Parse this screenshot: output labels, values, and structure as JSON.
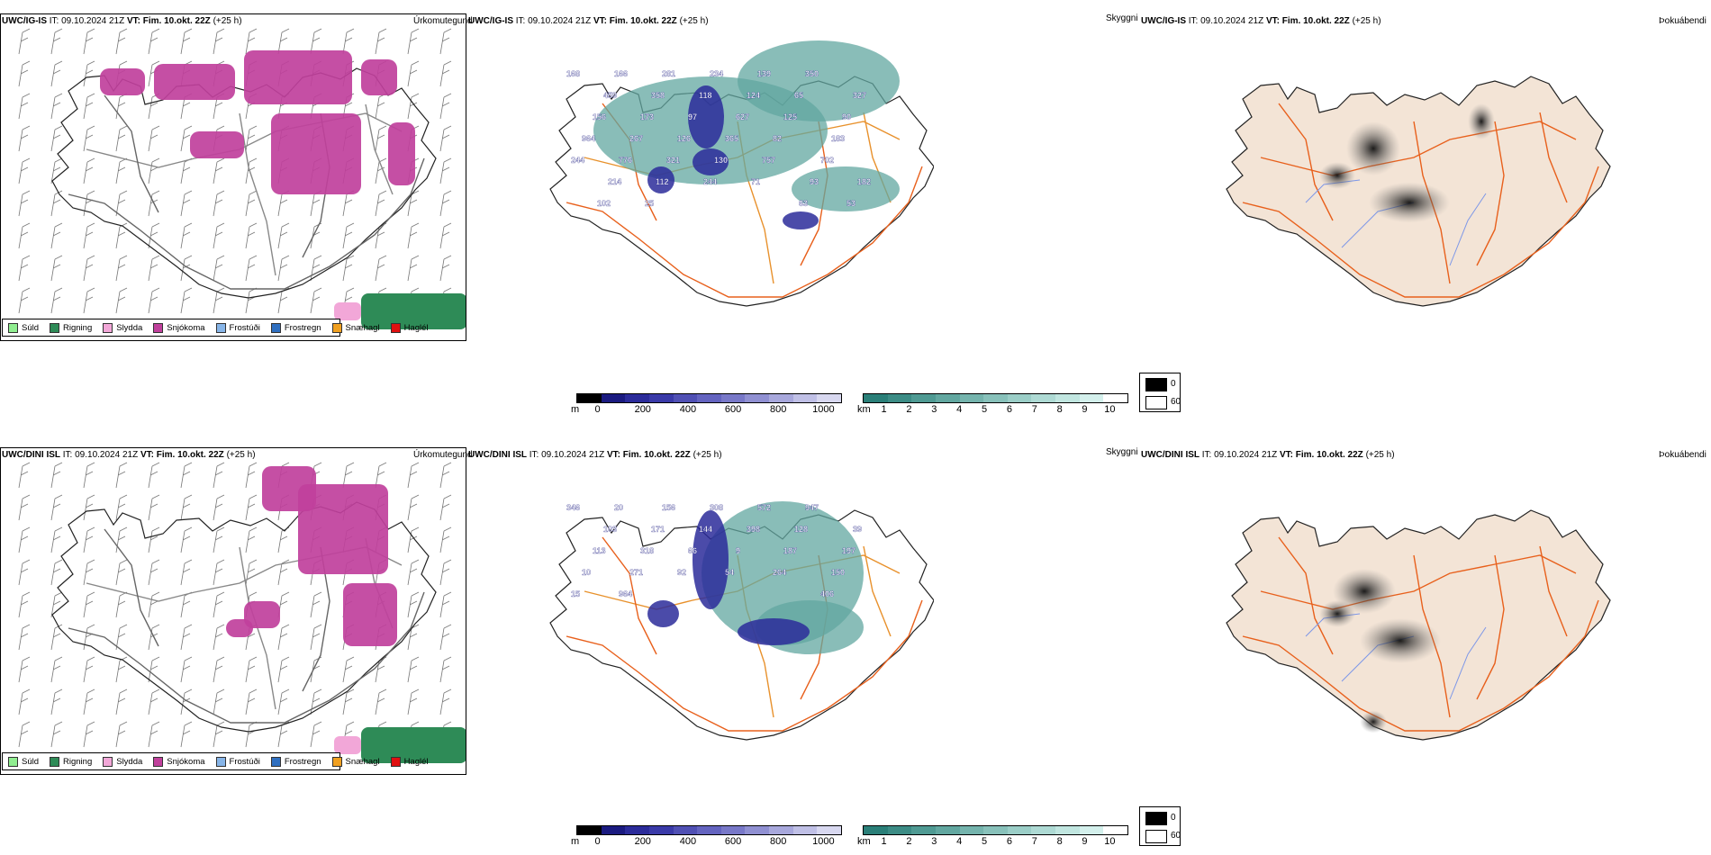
{
  "rows": [
    {
      "model": "UWC/IG-IS",
      "precip_header": {
        "model": "UWC/IG-IS",
        "it_label": "IT:",
        "it_value": "09.10.2024 21Z",
        "vt_label": "VT:",
        "vt_value": "Fim. 10.okt. 22Z",
        "lead": "(+25 h)"
      },
      "precip_title": "Úrkomutegund",
      "cloud_header": {
        "model": "UWC/IG-IS",
        "it_label": "IT:",
        "it_value": "09.10.2024 21Z",
        "vt_label": "VT:",
        "vt_value": "Fim. 10.okt. 22Z",
        "lead": "(+25 h)"
      },
      "cloud_title": "Skyggni",
      "fog_header": {
        "model": "UWC/IG-IS",
        "it_label": "IT:",
        "it_value": "09.10.2024 21Z",
        "vt_label": "VT:",
        "vt_value": "Fim. 10.okt. 22Z",
        "lead": "(+25 h)"
      },
      "fog_title": "Þokuábendi",
      "labels": [
        "168",
        "166",
        "281",
        "234",
        "139",
        "350",
        "327",
        "459",
        "358",
        "118",
        "124",
        "65",
        "90",
        "156",
        "173",
        "97",
        "627",
        "125",
        "183",
        "964",
        "267",
        "126",
        "365",
        "82",
        "702",
        "244",
        "776",
        "321",
        "130",
        "757",
        "93",
        "182",
        "214",
        "112",
        "244",
        "71",
        "63",
        "53",
        "102",
        "25"
      ]
    },
    {
      "model": "UWC/DINI ISL",
      "precip_header": {
        "model": "UWC/DINI ISL",
        "it_label": "IT:",
        "it_value": "09.10.2024 21Z",
        "vt_label": "VT:",
        "vt_value": "Fim. 10.okt. 22Z",
        "lead": "(+25 h)"
      },
      "precip_title": "Úrkomutegund",
      "cloud_header": {
        "model": "UWC/DINI ISL",
        "it_label": "IT:",
        "it_value": "09.10.2024 21Z",
        "vt_label": "VT:",
        "vt_value": "Fim. 10.okt. 22Z",
        "lead": "(+25 h)"
      },
      "cloud_title": "Skyggni",
      "fog_header": {
        "model": "UWC/DINI ISL",
        "it_label": "IT:",
        "it_value": "09.10.2024 21Z",
        "vt_label": "VT:",
        "vt_value": "Fim. 10.okt. 22Z",
        "lead": "(+25 h)"
      },
      "fog_title": "Þokuábendi",
      "labels": [
        "346",
        "20",
        "156",
        "308",
        "572",
        "947",
        "39",
        "103",
        "171",
        "144",
        "398",
        "128",
        "197",
        "113",
        "318",
        "66",
        "9",
        "187",
        "150",
        "10",
        "271",
        "92",
        "54",
        "264",
        "406",
        "15",
        "964"
      ]
    }
  ],
  "precip_legend": [
    {
      "label": "Súld",
      "color": "#90ee90"
    },
    {
      "label": "Rigning",
      "color": "#2e8b57"
    },
    {
      "label": "Slydda",
      "color": "#f2a7d8"
    },
    {
      "label": "Snjókoma",
      "color": "#c0409c"
    },
    {
      "label": "Frostúði",
      "color": "#87b5e8"
    },
    {
      "label": "Frostregn",
      "color": "#2f6fc0"
    },
    {
      "label": "Snæhagl",
      "color": "#f0a020"
    },
    {
      "label": "Haglél",
      "color": "#e01010"
    }
  ],
  "cloud_base_scale": {
    "unit": "m",
    "ticks": [
      "0",
      "200",
      "400",
      "600",
      "800",
      "1000"
    ],
    "colors": [
      "#000000",
      "#1a1a80",
      "#2b2b9a",
      "#3a3aa8",
      "#5050b4",
      "#6464c0",
      "#7878c8",
      "#9090d2",
      "#a8a8dc",
      "#c0c0e6",
      "#d8d8f0"
    ]
  },
  "visibility_scale": {
    "unit": "km",
    "ticks": [
      "1",
      "2",
      "3",
      "4",
      "5",
      "6",
      "7",
      "8",
      "9",
      "10"
    ],
    "colors": [
      "#2a7f78",
      "#3c8c85",
      "#4f9a93",
      "#62a7a0",
      "#75b4ad",
      "#88c1ba",
      "#9bcec7",
      "#aedad4",
      "#c1e6e0",
      "#d4f0ec",
      "#ffffff"
    ]
  },
  "cloud_cover_legend": {
    "black_label": "0",
    "white_label": "60"
  },
  "colors": {
    "land_fill_fog": "#f3e4d6",
    "roads": "#e8601c",
    "roads_mid": "#e8912c",
    "rivers": "#7d97e8",
    "snow": "#c0409c",
    "rain": "#2e8b57",
    "sleet": "#f2a7d8"
  }
}
